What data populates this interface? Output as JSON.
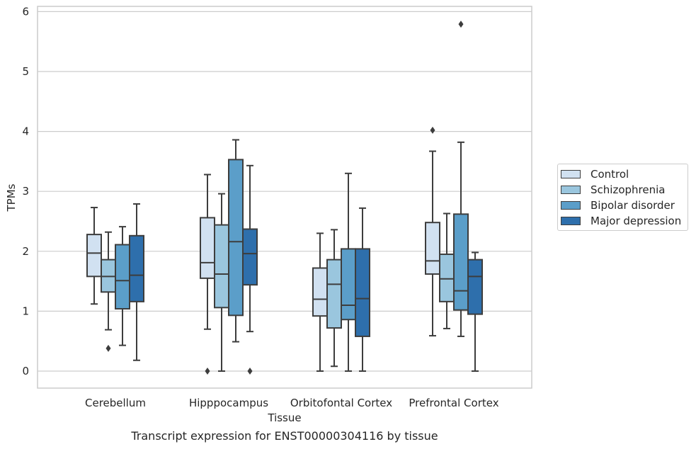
{
  "chart_data": {
    "type": "box",
    "title": "",
    "caption": "Transcript expression for ENST00000304116 by tissue",
    "xlabel": "Tissue",
    "ylabel": "TPMs",
    "ylim": [
      -0.28,
      6.1
    ],
    "yticks": [
      0,
      1,
      2,
      3,
      4,
      5,
      6
    ],
    "grid": "horizontal",
    "legend_position": "right",
    "categories": [
      "Cerebellum",
      "Hipppocampus",
      "Orbitofontal Cortex",
      "Prefrontal Cortex"
    ],
    "series": [
      {
        "name": "Control",
        "color": "#d1e1f1",
        "boxes": [
          {
            "whislo": 1.12,
            "q1": 1.58,
            "med": 1.97,
            "q3": 2.28,
            "whishi": 2.73,
            "fliers": []
          },
          {
            "whislo": 0.7,
            "q1": 1.55,
            "med": 1.81,
            "q3": 2.56,
            "whishi": 3.28,
            "fliers": [
              0.0
            ]
          },
          {
            "whislo": 0.0,
            "q1": 0.92,
            "med": 1.2,
            "q3": 1.72,
            "whishi": 2.3,
            "fliers": []
          },
          {
            "whislo": 0.59,
            "q1": 1.62,
            "med": 1.84,
            "q3": 2.48,
            "whishi": 3.67,
            "fliers": [
              4.02
            ]
          }
        ]
      },
      {
        "name": "Schizophrenia",
        "color": "#9ac6de",
        "boxes": [
          {
            "whislo": 0.69,
            "q1": 1.32,
            "med": 1.58,
            "q3": 1.86,
            "whishi": 2.32,
            "fliers": [
              0.38
            ]
          },
          {
            "whislo": 0.0,
            "q1": 1.06,
            "med": 1.62,
            "q3": 2.44,
            "whishi": 2.96,
            "fliers": []
          },
          {
            "whislo": 0.08,
            "q1": 0.72,
            "med": 1.45,
            "q3": 1.86,
            "whishi": 2.36,
            "fliers": []
          },
          {
            "whislo": 0.71,
            "q1": 1.16,
            "med": 1.54,
            "q3": 1.95,
            "whishi": 2.63,
            "fliers": []
          }
        ]
      },
      {
        "name": "Bipolar disorder",
        "color": "#5b9ec9",
        "boxes": [
          {
            "whislo": 0.43,
            "q1": 1.04,
            "med": 1.51,
            "q3": 2.11,
            "whishi": 2.41,
            "fliers": []
          },
          {
            "whislo": 0.49,
            "q1": 0.93,
            "med": 2.16,
            "q3": 3.53,
            "whishi": 3.86,
            "fliers": []
          },
          {
            "whislo": 0.0,
            "q1": 0.86,
            "med": 1.1,
            "q3": 2.04,
            "whishi": 3.3,
            "fliers": []
          },
          {
            "whislo": 0.58,
            "q1": 1.02,
            "med": 1.34,
            "q3": 2.62,
            "whishi": 3.82,
            "fliers": [
              5.79
            ]
          }
        ]
      },
      {
        "name": "Major depression",
        "color": "#2e6fac",
        "boxes": [
          {
            "whislo": 0.18,
            "q1": 1.16,
            "med": 1.6,
            "q3": 2.26,
            "whishi": 2.79,
            "fliers": []
          },
          {
            "whislo": 0.66,
            "q1": 1.44,
            "med": 1.96,
            "q3": 2.37,
            "whishi": 3.43,
            "fliers": [
              0.0
            ]
          },
          {
            "whislo": 0.0,
            "q1": 0.58,
            "med": 1.21,
            "q3": 2.04,
            "whishi": 2.72,
            "fliers": []
          },
          {
            "whislo": 0.0,
            "q1": 0.95,
            "med": 1.58,
            "q3": 1.86,
            "whishi": 1.98,
            "fliers": []
          }
        ]
      }
    ]
  }
}
